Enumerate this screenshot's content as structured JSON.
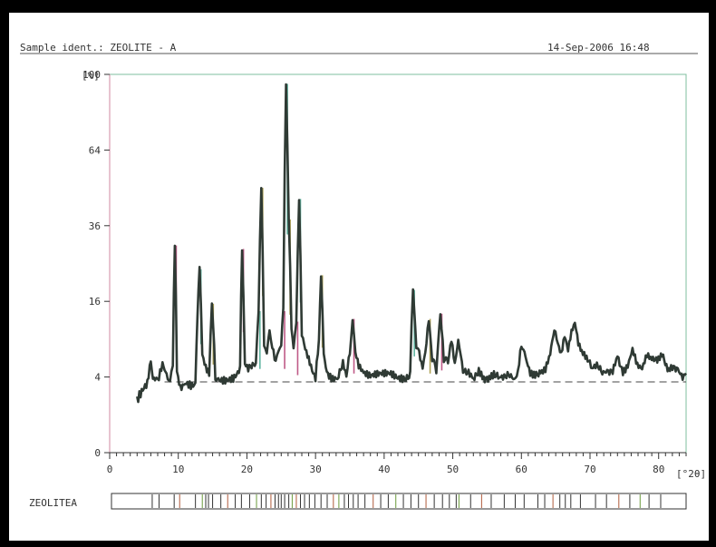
{
  "header": {
    "sample_ident": "Sample ident.: ZEOLITE - A",
    "timestamp": "14-Sep-2006 16:48"
  },
  "reference_label": "ZEOLITEA",
  "colors": {
    "page_background": "#000000",
    "plot_background": "#ffffff",
    "trace": "#2f3a34",
    "axis": "#333333",
    "baseline": "#444444",
    "peak_tint_1": "#b0316a",
    "peak_tint_2": "#3aa38a",
    "peak_tint_3": "#9a8a2a"
  },
  "chart_data": {
    "type": "line",
    "title": "",
    "xlabel": "[°2θ]",
    "ylabel": "[%]",
    "x_unit_label": "[°2θ]",
    "y_unit_label": "[%]",
    "xlim": [
      0,
      84
    ],
    "ylim": [
      0,
      100
    ],
    "y_scale": "sqrt",
    "x_ticks": [
      0,
      10,
      20,
      30,
      40,
      50,
      60,
      70,
      80
    ],
    "y_ticks": [
      0,
      4,
      16,
      36,
      64,
      100
    ],
    "x_tick_labels": [
      "0",
      "10",
      "20",
      "30",
      "40",
      "50",
      "60",
      "70",
      "80"
    ],
    "y_tick_labels": [
      "0",
      "4",
      "16",
      "36",
      "64",
      "100"
    ],
    "grid": false,
    "legend": "none",
    "background_level": 3.5,
    "series": [
      {
        "x": [
          4,
          5,
          5.5,
          6,
          6.3,
          6.6,
          7,
          7.7,
          8.3,
          8.8,
          9.2,
          9.5,
          9.8,
          10.3,
          11,
          12,
          12.5,
          13.1,
          13.5,
          14,
          14.5,
          14.9,
          15.4,
          16,
          17,
          18,
          18.5,
          19,
          19.3,
          19.7,
          20.2,
          21,
          21.3,
          21.7,
          22.1,
          22.5,
          22.9,
          23.3,
          23.7,
          24.2,
          24.6,
          25,
          25.3,
          25.7,
          26.1,
          26.5,
          26.8,
          27.2,
          27.6,
          28,
          28.5,
          29,
          29.5,
          30,
          30.5,
          30.8,
          31.2,
          31.8,
          32.5,
          33.2,
          34,
          34.5,
          35,
          35.4,
          35.8,
          36.3,
          37,
          38,
          39,
          40,
          41,
          42,
          43,
          43.8,
          44.2,
          44.7,
          45.1,
          45.6,
          46,
          46.5,
          47,
          47.6,
          48.2,
          48.7,
          49.3,
          49.8,
          50.3,
          50.8,
          51.5,
          52.3,
          53,
          53.8,
          54.5,
          55.3,
          56,
          56.8,
          57.5,
          58.3,
          59,
          59.5,
          60,
          60.6,
          61.3,
          62,
          62.8,
          63.5,
          64.2,
          64.8,
          65.3,
          65.8,
          66.3,
          66.8,
          67.3,
          67.8,
          68.3,
          68.8,
          69.5,
          70.3,
          71,
          71.8,
          72.5,
          73.3,
          74,
          74.8,
          75.5,
          76.2,
          76.9,
          77.6,
          78.3,
          79,
          79.8,
          80.5,
          81.3,
          82,
          82.8,
          83.5,
          84
        ],
        "y": [
          2.2,
          3.0,
          3.3,
          5.8,
          3.6,
          3.4,
          3.2,
          5.4,
          4.1,
          3.5,
          4.6,
          30.0,
          4.8,
          3.2,
          3.5,
          3.4,
          3.6,
          23.5,
          7.0,
          5.4,
          4.6,
          15.5,
          4.2,
          3.6,
          3.4,
          3.5,
          3.9,
          4.6,
          29.0,
          5.2,
          4.6,
          5.4,
          6.2,
          14.0,
          49.0,
          8.0,
          6.2,
          10.5,
          8.0,
          5.8,
          6.8,
          8.5,
          14.0,
          95.0,
          38.0,
          11.0,
          7.0,
          12.0,
          45.0,
          9.5,
          7.2,
          5.8,
          4.4,
          3.6,
          8.5,
          22.0,
          6.2,
          4.6,
          4.0,
          3.8,
          6.0,
          4.4,
          7.4,
          12.5,
          6.8,
          5.0,
          4.4,
          3.9,
          4.0,
          4.1,
          4.2,
          3.9,
          4.0,
          4.5,
          18.5,
          7.5,
          6.6,
          4.6,
          7.0,
          12.5,
          6.0,
          4.6,
          13.5,
          6.2,
          5.4,
          8.8,
          5.4,
          8.8,
          4.5,
          4.8,
          4.0,
          5.0,
          4.2,
          4.0,
          4.6,
          3.8,
          4.0,
          3.9,
          3.4,
          4.2,
          7.8,
          6.6,
          4.5,
          4.0,
          4.8,
          5.0,
          6.6,
          11.0,
          8.5,
          6.8,
          9.5,
          7.2,
          10.0,
          11.5,
          8.0,
          6.8,
          6.0,
          4.8,
          5.0,
          4.6,
          4.4,
          5.0,
          6.6,
          4.8,
          5.6,
          7.6,
          5.2,
          4.6,
          6.4,
          6.0,
          5.6,
          6.4,
          4.6,
          4.8,
          5.0,
          3.9,
          4.4
        ]
      }
    ],
    "reference_lines": [
      6.2,
      7.2,
      9.4,
      10.2,
      12.5,
      13.5,
      14,
      14.4,
      15,
      16.2,
      17.2,
      18.3,
      19.2,
      20.4,
      21.4,
      22.1,
      22.8,
      23.5,
      24.1,
      24.6,
      25,
      25.5,
      26.1,
      26.6,
      27.2,
      27.8,
      28.4,
      29.1,
      29.9,
      30.8,
      31.7,
      32.6,
      33.4,
      34.2,
      34.8,
      35.5,
      36.2,
      37.2,
      38.4,
      39.5,
      40.6,
      41.7,
      42.8,
      43.9,
      45,
      46.1,
      47.3,
      48.5,
      49.5,
      50.5,
      50.9,
      52.6,
      54.2,
      55.6,
      57.5,
      59.1,
      60.4,
      62.4,
      63.4,
      64.6,
      65.6,
      66.4,
      67.2,
      68.6,
      70.8,
      72.4,
      74.2,
      75.8,
      77.3,
      78.6,
      80.3
    ]
  }
}
